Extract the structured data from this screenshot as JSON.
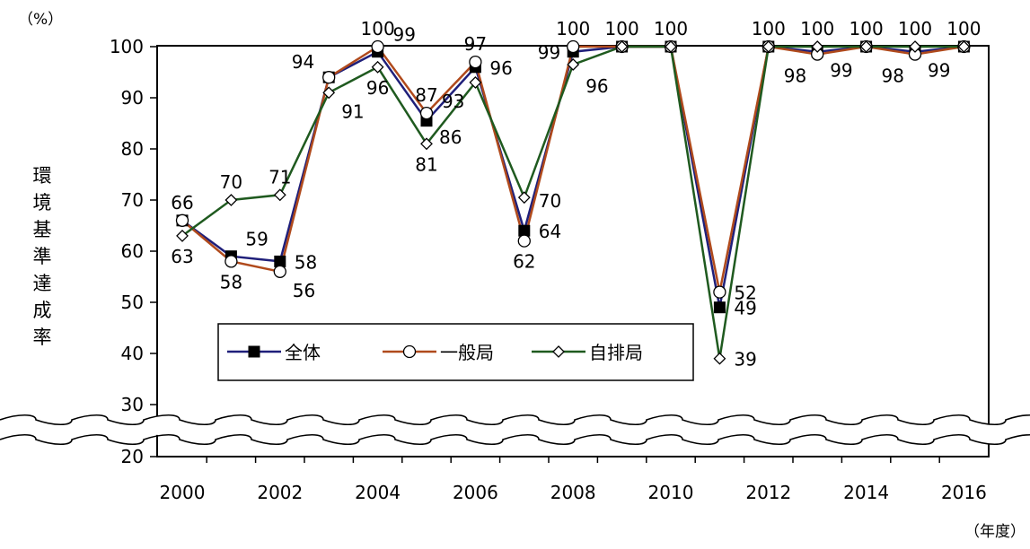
{
  "chart_data": {
    "type": "line",
    "y_unit": "（%）",
    "x_unit": "（年度）",
    "ylabel": "環境基準達成率",
    "ylim": [
      20,
      100
    ],
    "yticks": [
      20,
      30,
      40,
      50,
      60,
      70,
      80,
      90,
      100
    ],
    "axis_break": "between 20 and 30",
    "grid": false,
    "legend_position": "lower-left inside plot",
    "x": [
      2000,
      2001,
      2002,
      2003,
      2004,
      2005,
      2006,
      2007,
      2008,
      2009,
      2010,
      2011,
      2012,
      2013,
      2014,
      2015,
      2016
    ],
    "xticks": [
      2000,
      2002,
      2004,
      2006,
      2008,
      2010,
      2012,
      2014,
      2016
    ],
    "series": [
      {
        "name": "全体",
        "color": "#1f1f7a",
        "marker": "filled-square",
        "values": [
          66,
          59,
          58,
          94,
          99,
          85.5,
          96,
          64,
          99,
          100,
          100,
          49,
          100,
          99,
          100,
          99,
          100
        ]
      },
      {
        "name": "一般局",
        "color": "#b04a1c",
        "marker": "open-circle",
        "values": [
          66,
          58,
          56,
          94,
          100,
          87,
          97,
          62,
          100,
          100,
          100,
          52,
          100,
          98.5,
          100,
          98.5,
          100
        ]
      },
      {
        "name": "自排局",
        "color": "#1f5a1f",
        "marker": "open-diamond",
        "values": [
          63,
          70,
          71,
          91,
          96,
          81,
          93,
          70.5,
          96.5,
          100,
          100,
          39,
          100,
          100,
          100,
          100,
          100
        ]
      }
    ],
    "annotations": [
      {
        "text": "66",
        "x": 2000,
        "y": 66,
        "pos": "above"
      },
      {
        "text": "63",
        "x": 2000,
        "y": 63,
        "pos": "below"
      },
      {
        "text": "59",
        "x": 2001,
        "y": 59,
        "pos": "above-right"
      },
      {
        "text": "58",
        "x": 2001,
        "y": 58,
        "pos": "below"
      },
      {
        "text": "70",
        "x": 2001,
        "y": 70,
        "pos": "above"
      },
      {
        "text": "71",
        "x": 2002,
        "y": 71,
        "pos": "above"
      },
      {
        "text": "58",
        "x": 2002,
        "y": 58,
        "pos": "right"
      },
      {
        "text": "56",
        "x": 2002,
        "y": 56,
        "pos": "below-right"
      },
      {
        "text": "94",
        "x": 2003,
        "y": 94,
        "pos": "upper-left"
      },
      {
        "text": "91",
        "x": 2003,
        "y": 91,
        "pos": "below-right"
      },
      {
        "text": "100",
        "x": 2004,
        "y": 100,
        "pos": "above"
      },
      {
        "text": "96",
        "x": 2004,
        "y": 96,
        "pos": "below"
      },
      {
        "text": "99",
        "x": 2005,
        "y": 99,
        "pos": "above-left"
      },
      {
        "text": "87",
        "x": 2005,
        "y": 87,
        "pos": "above"
      },
      {
        "text": "86",
        "x": 2005,
        "y": 86,
        "pos": "below-right"
      },
      {
        "text": "81",
        "x": 2005,
        "y": 81,
        "pos": "below"
      },
      {
        "text": "97",
        "x": 2006,
        "y": 97,
        "pos": "above"
      },
      {
        "text": "96",
        "x": 2006,
        "y": 96,
        "pos": "right"
      },
      {
        "text": "93",
        "x": 2006,
        "y": 93,
        "pos": "below-left"
      },
      {
        "text": "70",
        "x": 2007,
        "y": 70,
        "pos": "right"
      },
      {
        "text": "64",
        "x": 2007,
        "y": 64,
        "pos": "right"
      },
      {
        "text": "62",
        "x": 2007,
        "y": 62,
        "pos": "below"
      },
      {
        "text": "100",
        "x": 2008,
        "y": 100,
        "pos": "above"
      },
      {
        "text": "99",
        "x": 2008,
        "y": 99,
        "pos": "left"
      },
      {
        "text": "96",
        "x": 2008,
        "y": 96,
        "pos": "below-right"
      },
      {
        "text": "100",
        "x": 2009,
        "y": 100,
        "pos": "above"
      },
      {
        "text": "100",
        "x": 2010,
        "y": 100,
        "pos": "above"
      },
      {
        "text": "52",
        "x": 2011,
        "y": 52,
        "pos": "right"
      },
      {
        "text": "49",
        "x": 2011,
        "y": 49,
        "pos": "right"
      },
      {
        "text": "39",
        "x": 2011,
        "y": 39,
        "pos": "right"
      },
      {
        "text": "100",
        "x": 2012,
        "y": 100,
        "pos": "above"
      },
      {
        "text": "100",
        "x": 2013,
        "y": 100,
        "pos": "above"
      },
      {
        "text": "98",
        "x": 2013,
        "y": 98,
        "pos": "below-left"
      },
      {
        "text": "99",
        "x": 2013,
        "y": 99,
        "pos": "below-right"
      },
      {
        "text": "100",
        "x": 2014,
        "y": 100,
        "pos": "above"
      },
      {
        "text": "100",
        "x": 2015,
        "y": 100,
        "pos": "above"
      },
      {
        "text": "98",
        "x": 2015,
        "y": 98,
        "pos": "below-left"
      },
      {
        "text": "99",
        "x": 2015,
        "y": 99,
        "pos": "below-right"
      },
      {
        "text": "100",
        "x": 2016,
        "y": 100,
        "pos": "above"
      }
    ]
  }
}
